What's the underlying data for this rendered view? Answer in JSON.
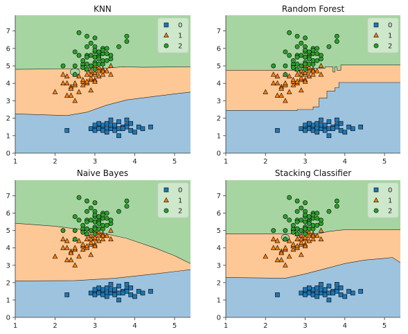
{
  "figure": {
    "colors": {
      "class0_region": "#9ec3df",
      "class1_region": "#fdc895",
      "class2_region": "#a7d5a2",
      "class0_marker": "#1f77b4",
      "class1_marker": "#ff7f0e",
      "class2_marker": "#2ca02c"
    }
  },
  "chart_data": [
    {
      "type": "scatter",
      "title": "KNN",
      "xlim": [
        1,
        5.4
      ],
      "ylim": [
        0,
        7.9
      ],
      "xticks": [
        "1",
        "2",
        "3",
        "4",
        "5"
      ],
      "yticks": [
        "0",
        "1",
        "2",
        "3",
        "4",
        "5",
        "6",
        "7"
      ],
      "legend": {
        "placement": "top-right",
        "entries": [
          "0",
          "1",
          "2"
        ]
      },
      "boundaries": {
        "b01": [
          [
            1,
            2.25
          ],
          [
            2.3,
            2.15
          ],
          [
            2.8,
            2.35
          ],
          [
            3.3,
            2.75
          ],
          [
            3.8,
            3.05
          ],
          [
            4.5,
            3.25
          ],
          [
            5.4,
            3.5
          ]
        ],
        "b12": [
          [
            1,
            4.8
          ],
          [
            3.2,
            4.85
          ],
          [
            3.7,
            4.95
          ],
          [
            4.2,
            4.92
          ],
          [
            5.4,
            4.95
          ]
        ],
        "islands": [
          {
            "cx": 2.5,
            "cy": 4.65,
            "rx": 0.12,
            "ry": 0.2
          }
        ]
      }
    },
    {
      "type": "scatter",
      "title": "Random Forest",
      "xlim": [
        1,
        5.4
      ],
      "ylim": [
        0,
        7.9
      ],
      "xticks": [
        "1",
        "2",
        "3",
        "4",
        "5"
      ],
      "yticks": [
        "0",
        "1",
        "2",
        "3",
        "4",
        "5",
        "6",
        "7"
      ],
      "legend": {
        "placement": "top-right",
        "entries": [
          "0",
          "1",
          "2"
        ]
      },
      "boundaries": {
        "b01": [
          [
            1,
            2.45
          ],
          [
            2.8,
            2.45
          ],
          [
            2.8,
            2.5
          ],
          [
            3.2,
            2.5
          ],
          [
            3.2,
            2.65
          ],
          [
            3.35,
            2.65
          ],
          [
            3.35,
            3.15
          ],
          [
            3.55,
            3.15
          ],
          [
            3.55,
            3.55
          ],
          [
            3.75,
            3.55
          ],
          [
            3.75,
            3.75
          ],
          [
            3.85,
            3.75
          ],
          [
            3.85,
            4.05
          ],
          [
            5.4,
            4.05
          ]
        ],
        "b12": [
          [
            1,
            4.75
          ],
          [
            3.1,
            4.75
          ],
          [
            3.1,
            4.85
          ],
          [
            3.5,
            4.85
          ],
          [
            3.5,
            4.95
          ],
          [
            3.7,
            4.95
          ],
          [
            3.7,
            4.65
          ],
          [
            3.75,
            4.65
          ],
          [
            3.75,
            4.95
          ],
          [
            3.8,
            4.95
          ],
          [
            3.8,
            4.75
          ],
          [
            3.9,
            4.75
          ],
          [
            3.9,
            5.05
          ],
          [
            5.4,
            5.05
          ]
        ],
        "islands": []
      }
    },
    {
      "type": "scatter",
      "title": "Naive Bayes",
      "xlim": [
        1,
        5.4
      ],
      "ylim": [
        0,
        7.9
      ],
      "xticks": [
        "1",
        "2",
        "3",
        "4",
        "5"
      ],
      "yticks": [
        "0",
        "1",
        "2",
        "3",
        "4",
        "5",
        "6",
        "7"
      ],
      "legend": {
        "placement": "top-right",
        "entries": [
          "0",
          "1",
          "2"
        ]
      },
      "boundaries": {
        "b01": [
          [
            1,
            2.1
          ],
          [
            2.5,
            2.12
          ],
          [
            3.5,
            2.25
          ],
          [
            4.5,
            2.5
          ],
          [
            5.4,
            2.75
          ]
        ],
        "b12": [
          [
            1,
            5.42
          ],
          [
            2,
            5.25
          ],
          [
            3,
            4.95
          ],
          [
            3.8,
            4.55
          ],
          [
            4.5,
            4.0
          ],
          [
            5.0,
            3.55
          ],
          [
            5.4,
            3.1
          ]
        ],
        "islands": []
      }
    },
    {
      "type": "scatter",
      "title": "Stacking Classifier",
      "xlim": [
        1,
        5.4
      ],
      "ylim": [
        0,
        7.9
      ],
      "xticks": [
        "1",
        "2",
        "3",
        "4",
        "5"
      ],
      "yticks": [
        "0",
        "1",
        "2",
        "3",
        "4",
        "5",
        "6",
        "7"
      ],
      "legend": {
        "placement": "top-right",
        "entries": [
          "0",
          "1",
          "2"
        ]
      },
      "boundaries": {
        "b01": [
          [
            1,
            2.3
          ],
          [
            2.5,
            2.25
          ],
          [
            3.0,
            2.5
          ],
          [
            3.5,
            2.8
          ],
          [
            4.0,
            3.1
          ],
          [
            4.5,
            3.3
          ],
          [
            5.0,
            3.4
          ],
          [
            5.2,
            3.45
          ],
          [
            5.4,
            3.15
          ]
        ],
        "b12": [
          [
            1,
            4.8
          ],
          [
            3.3,
            4.8
          ],
          [
            3.6,
            4.95
          ],
          [
            4.0,
            5.05
          ],
          [
            5.4,
            5.05
          ]
        ],
        "islands": [
          {
            "cx": 2.5,
            "cy": 4.6,
            "rx": 0.1,
            "ry": 0.18
          }
        ]
      }
    }
  ],
  "points": {
    "class0": [
      [
        2.3,
        1.3
      ],
      [
        2.9,
        1.4
      ],
      [
        3.0,
        1.4
      ],
      [
        3.0,
        1.3
      ],
      [
        3.1,
        1.5
      ],
      [
        3.1,
        1.4
      ],
      [
        3.2,
        1.4
      ],
      [
        3.2,
        1.6
      ],
      [
        3.2,
        1.3
      ],
      [
        3.3,
        1.4
      ],
      [
        3.3,
        1.7
      ],
      [
        3.4,
        1.5
      ],
      [
        3.4,
        1.4
      ],
      [
        3.4,
        1.6
      ],
      [
        3.5,
        1.4
      ],
      [
        3.5,
        1.5
      ],
      [
        3.5,
        1.3
      ],
      [
        3.5,
        1.6
      ],
      [
        3.6,
        1.4
      ],
      [
        3.6,
        1.8
      ],
      [
        3.7,
        1.5
      ],
      [
        3.8,
        1.9
      ],
      [
        3.8,
        1.6
      ],
      [
        3.8,
        1.5
      ],
      [
        3.9,
        1.7
      ],
      [
        3.9,
        1.3
      ],
      [
        4.0,
        1.2
      ],
      [
        4.1,
        1.5
      ],
      [
        4.2,
        1.4
      ],
      [
        4.4,
        1.5
      ],
      [
        3.1,
        1.7
      ],
      [
        3.6,
        1.0
      ],
      [
        3.3,
        1.2
      ],
      [
        3.0,
        1.6
      ],
      [
        3.4,
        1.9
      ],
      [
        3.7,
        1.4
      ]
    ],
    "class1": [
      [
        2.0,
        3.5
      ],
      [
        2.2,
        4.0
      ],
      [
        2.2,
        4.5
      ],
      [
        2.3,
        3.3
      ],
      [
        2.3,
        4.0
      ],
      [
        2.3,
        4.4
      ],
      [
        2.4,
        3.3
      ],
      [
        2.4,
        3.8
      ],
      [
        2.4,
        3.7
      ],
      [
        2.5,
        3.9
      ],
      [
        2.5,
        3.0
      ],
      [
        2.5,
        4.0
      ],
      [
        2.5,
        4.5
      ],
      [
        2.6,
        3.5
      ],
      [
        2.6,
        4.4
      ],
      [
        2.7,
        3.9
      ],
      [
        2.7,
        4.1
      ],
      [
        2.7,
        4.2
      ],
      [
        2.7,
        5.1
      ],
      [
        2.8,
        4.0
      ],
      [
        2.8,
        4.5
      ],
      [
        2.8,
        4.8
      ],
      [
        2.8,
        4.1
      ],
      [
        2.9,
        4.7
      ],
      [
        2.9,
        4.2
      ],
      [
        2.9,
        4.3
      ],
      [
        2.9,
        4.5
      ],
      [
        3.0,
        4.2
      ],
      [
        3.0,
        4.5
      ],
      [
        3.0,
        5.0
      ],
      [
        3.1,
        4.4
      ],
      [
        3.1,
        4.9
      ],
      [
        3.1,
        4.7
      ],
      [
        3.2,
        4.5
      ],
      [
        3.2,
        4.8
      ],
      [
        3.3,
        4.7
      ],
      [
        3.4,
        4.5
      ],
      [
        3.4,
        5.0
      ],
      [
        3.0,
        4.1
      ],
      [
        3.2,
        4.7
      ],
      [
        3.0,
        4.6
      ],
      [
        2.9,
        3.6
      ]
    ],
    "class2": [
      [
        2.2,
        5.0
      ],
      [
        2.5,
        4.5
      ],
      [
        2.5,
        5.0
      ],
      [
        2.5,
        5.8
      ],
      [
        2.6,
        5.6
      ],
      [
        2.6,
        6.9
      ],
      [
        2.7,
        5.1
      ],
      [
        2.7,
        5.3
      ],
      [
        2.7,
        4.9
      ],
      [
        2.8,
        5.1
      ],
      [
        2.8,
        6.1
      ],
      [
        2.8,
        6.7
      ],
      [
        2.8,
        5.6
      ],
      [
        2.8,
        4.8
      ],
      [
        2.9,
        5.6
      ],
      [
        2.9,
        6.3
      ],
      [
        3.0,
        5.8
      ],
      [
        3.0,
        6.1
      ],
      [
        3.0,
        6.6
      ],
      [
        3.0,
        5.2
      ],
      [
        3.0,
        5.5
      ],
      [
        3.0,
        4.8
      ],
      [
        3.0,
        5.9
      ],
      [
        3.1,
        5.1
      ],
      [
        3.1,
        5.6
      ],
      [
        3.1,
        5.5
      ],
      [
        3.1,
        5.4
      ],
      [
        3.2,
        5.7
      ],
      [
        3.2,
        6.0
      ],
      [
        3.2,
        5.9
      ],
      [
        3.2,
        5.1
      ],
      [
        3.2,
        5.3
      ],
      [
        3.3,
        5.7
      ],
      [
        3.3,
        6.0
      ],
      [
        3.4,
        5.4
      ],
      [
        3.4,
        5.6
      ],
      [
        3.6,
        6.1
      ],
      [
        3.8,
        6.4
      ],
      [
        3.8,
        6.7
      ],
      [
        2.9,
        5.0
      ],
      [
        3.0,
        5.1
      ],
      [
        3.1,
        5.8
      ],
      [
        2.8,
        5.5
      ],
      [
        3.3,
        5.3
      ]
    ]
  }
}
